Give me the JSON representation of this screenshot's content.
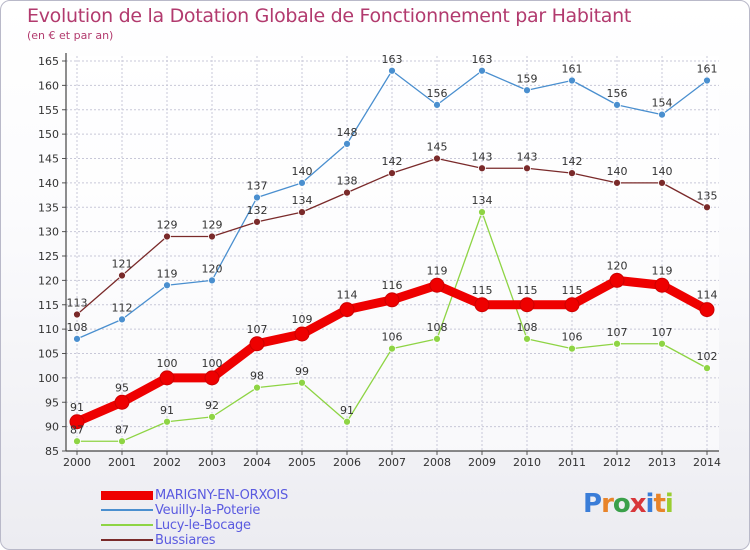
{
  "title": "Evolution de la Dotation Globale de Fonctionnement par Habitant",
  "subtitle": "(en € et par an)",
  "logo": {
    "text": "Proxiti",
    "colors": [
      "#3a7dd8",
      "#e8842a",
      "#3aa04a",
      "#d8363a",
      "#3a7dd8",
      "#e8842a",
      "#9acd32"
    ]
  },
  "chart_data": {
    "type": "line",
    "title": "Evolution de la Dotation Globale de Fonctionnement par Habitant",
    "subtitle": "(en € et par an)",
    "x": [
      2000,
      2001,
      2002,
      2003,
      2004,
      2005,
      2006,
      2007,
      2008,
      2009,
      2010,
      2011,
      2012,
      2013,
      2014
    ],
    "ylim": [
      85,
      165
    ],
    "yticks": [
      85,
      90,
      95,
      100,
      105,
      110,
      115,
      120,
      125,
      130,
      135,
      140,
      145,
      150,
      155,
      160,
      165
    ],
    "grid": true,
    "legend_position": "bottom-left",
    "series": [
      {
        "name": "MARIGNY-EN-ORXOIS",
        "color": "#ee0000",
        "values": [
          91,
          95,
          100,
          100,
          107,
          109,
          114,
          116,
          119,
          115,
          115,
          115,
          120,
          119,
          114
        ]
      },
      {
        "name": "Veuilly-la-Poterie",
        "color": "#4a8fcf",
        "values": [
          108,
          112,
          119,
          120,
          137,
          140,
          148,
          163,
          156,
          163,
          159,
          161,
          156,
          154,
          161
        ]
      },
      {
        "name": "Lucy-le-Bocage",
        "color": "#8ed444",
        "values": [
          87,
          87,
          91,
          92,
          98,
          99,
          91,
          106,
          108,
          134,
          108,
          106,
          107,
          107,
          102
        ]
      },
      {
        "name": "Bussiares",
        "color": "#7a2a2a",
        "values": [
          113,
          121,
          129,
          129,
          132,
          134,
          138,
          142,
          145,
          143,
          143,
          142,
          140,
          140,
          135
        ]
      }
    ]
  }
}
